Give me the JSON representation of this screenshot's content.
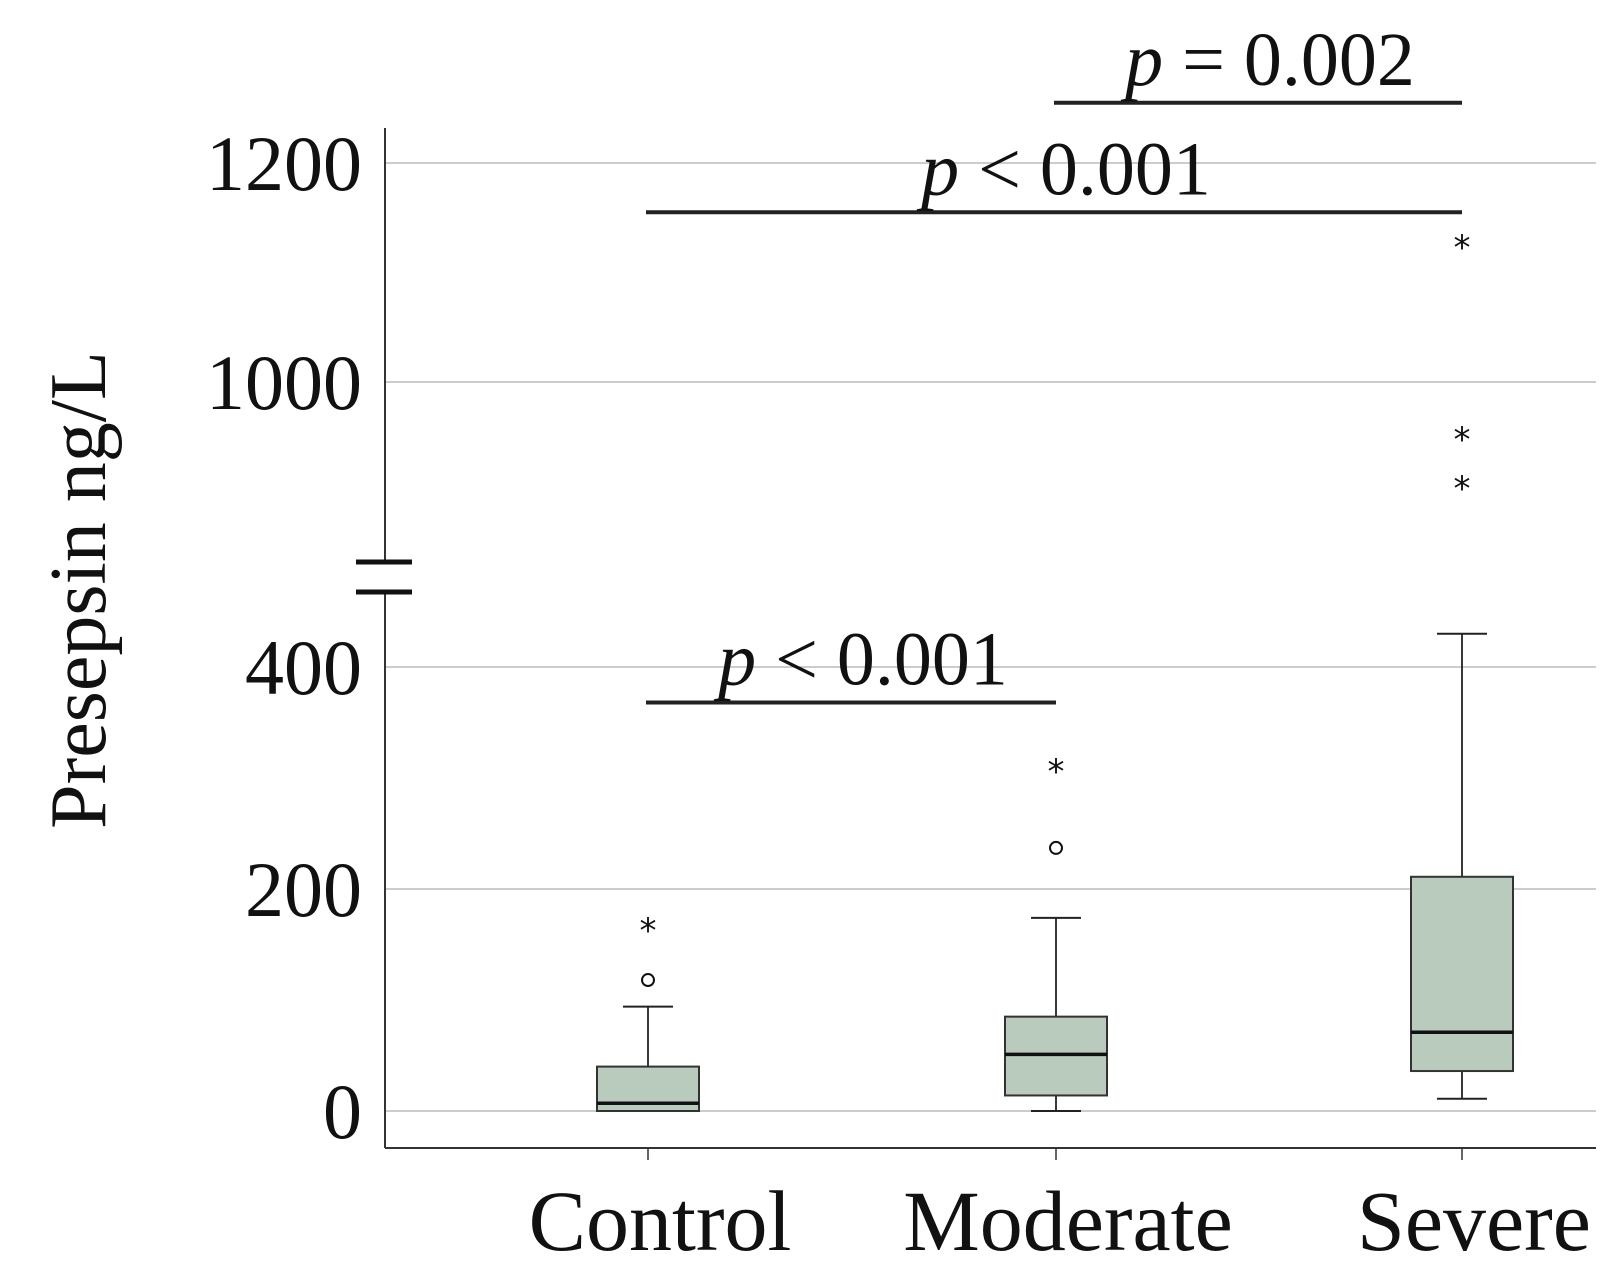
{
  "chart_data": {
    "type": "boxplot",
    "ylabel": "Presepsin ng/L",
    "xlabel": "",
    "axis_break": {
      "lower_max": 450,
      "upper_min": 900
    },
    "ylim": [
      0,
      1250
    ],
    "yticks": [
      {
        "value": 0,
        "label": "0"
      },
      {
        "value": 200,
        "label": "200"
      },
      {
        "value": 400,
        "label": "400"
      },
      {
        "value": 1000,
        "label": "1000"
      },
      {
        "value": 1200,
        "label": "1200"
      }
    ],
    "categories": [
      "Control",
      "Moderate",
      "Severe"
    ],
    "colors": {
      "box_fill": "#b8cbbd",
      "box_stroke": "#333333",
      "grid": "#bbbbbb"
    },
    "boxes": [
      {
        "category": "Control",
        "whisker_low": 0,
        "q1": 0,
        "median": 7,
        "q3": 40,
        "whisker_high": 94,
        "outliers": [
          118
        ],
        "extremes": [
          165
        ]
      },
      {
        "category": "Moderate",
        "whisker_low": 0,
        "q1": 14,
        "median": 51,
        "q3": 85,
        "whisker_high": 174,
        "outliers": [
          237
        ],
        "extremes": [
          308
        ]
      },
      {
        "category": "Severe",
        "whisker_low": 11,
        "q1": 36,
        "median": 71,
        "q3": 211,
        "whisker_high": 430,
        "outliers": [],
        "extremes": [
          1125,
          950,
          905
        ]
      }
    ],
    "comparisons": [
      {
        "from": "Control",
        "to": "Moderate",
        "level": 368,
        "p_symbol": "p",
        "p_rest": " < 0.001"
      },
      {
        "from": "Control",
        "to": "Severe",
        "level": 1155,
        "p_symbol": "p",
        "p_rest": " < 0.001"
      },
      {
        "from": "Moderate",
        "to": "Severe",
        "level": 1255,
        "p_symbol": "p",
        "p_rest": " = 0.002"
      }
    ]
  }
}
